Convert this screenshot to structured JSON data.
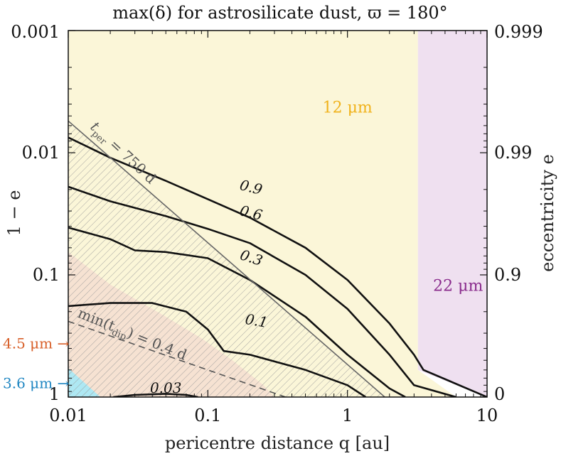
{
  "chart_data": {
    "type": "contour",
    "title": "max(δ) for astrosilicate dust, ϖ = 180°",
    "xlabel": "pericentre distance q [au]",
    "ylabel": "1 − e",
    "y2label": "eccentricity e",
    "xscale": "log",
    "yscale": "log",
    "xlim": [
      0.01,
      10
    ],
    "ylim": [
      1,
      0.001
    ],
    "xticks": [
      0.01,
      0.1,
      1,
      10
    ],
    "xtick_labels": [
      "0.01",
      "0.1",
      "1",
      "10"
    ],
    "yticks": [
      0.001,
      0.01,
      0.1,
      1
    ],
    "ytick_labels": [
      "0.001",
      "0.01",
      "0.1",
      "1"
    ],
    "y2tick_labels": [
      "0.999",
      "0.99",
      "0.9",
      "0"
    ],
    "regions": [
      {
        "name": "3.6 μm",
        "label": "3.6 μm",
        "color": "#aee8f3",
        "polygon": [
          [
            0.01,
            1
          ],
          [
            0.01,
            0.58
          ],
          [
            0.017,
            1
          ]
        ]
      },
      {
        "name": "4.5 μm",
        "label": "4.5 μm",
        "color": "#f6e2d2",
        "polygon": [
          [
            0.01,
            1
          ],
          [
            0.01,
            0.065
          ],
          [
            0.02,
            0.12
          ],
          [
            0.05,
            0.22
          ],
          [
            0.09,
            0.33
          ],
          [
            0.15,
            0.5
          ],
          [
            0.25,
            0.8
          ],
          [
            0.3,
            1
          ]
        ]
      },
      {
        "name": "12 μm",
        "label": "12 μm",
        "color": "#fbf6d8",
        "polygon": [
          [
            0.01,
            0.001
          ],
          [
            3.2,
            0.001
          ],
          [
            3.2,
            0.6
          ],
          [
            6,
            1
          ],
          [
            0.01,
            1
          ]
        ]
      },
      {
        "name": "22 μm",
        "label": "22 μm",
        "color": "#efe0f0",
        "polygon": [
          [
            3.2,
            0.001
          ],
          [
            10,
            0.001
          ],
          [
            10,
            1
          ],
          [
            3.2,
            0.6
          ]
        ]
      }
    ],
    "hatched_region": {
      "description": "t_dip constraint region",
      "bounded_by": "t_per = 750 d"
    },
    "contours": [
      {
        "level": "0.9",
        "label": "0.9",
        "points": [
          [
            0.01,
            0.0075
          ],
          [
            0.02,
            0.011
          ],
          [
            0.05,
            0.017
          ],
          [
            0.1,
            0.024
          ],
          [
            0.2,
            0.034
          ],
          [
            0.5,
            0.06
          ],
          [
            1,
            0.11
          ],
          [
            2,
            0.25
          ],
          [
            3,
            0.45
          ],
          [
            3.5,
            0.6
          ],
          [
            10,
            1
          ]
        ]
      },
      {
        "level": "0.6",
        "label": "0.6",
        "points": [
          [
            0.01,
            0.019
          ],
          [
            0.02,
            0.025
          ],
          [
            0.05,
            0.033
          ],
          [
            0.1,
            0.042
          ],
          [
            0.2,
            0.055
          ],
          [
            0.5,
            0.1
          ],
          [
            1,
            0.19
          ],
          [
            2,
            0.45
          ],
          [
            3,
            0.8
          ],
          [
            6,
            1
          ]
        ]
      },
      {
        "level": "0.3",
        "label": "0.3",
        "points": [
          [
            0.01,
            0.041
          ],
          [
            0.02,
            0.051
          ],
          [
            0.03,
            0.063
          ],
          [
            0.05,
            0.065
          ],
          [
            0.1,
            0.073
          ],
          [
            0.2,
            0.11
          ],
          [
            0.5,
            0.22
          ],
          [
            1,
            0.45
          ],
          [
            2,
            0.85
          ],
          [
            2.6,
            1
          ]
        ]
      },
      {
        "level": "0.1",
        "label": "0.1",
        "points": [
          [
            0.01,
            0.18
          ],
          [
            0.02,
            0.17
          ],
          [
            0.04,
            0.17
          ],
          [
            0.07,
            0.2
          ],
          [
            0.1,
            0.28
          ],
          [
            0.13,
            0.42
          ],
          [
            0.2,
            0.45
          ],
          [
            0.5,
            0.6
          ],
          [
            1,
            0.8
          ],
          [
            1.35,
            1
          ]
        ]
      },
      {
        "level": "0.03",
        "label": "0.03",
        "points": [
          [
            0.021,
            1
          ],
          [
            0.03,
            0.96
          ],
          [
            0.05,
            0.94
          ],
          [
            0.07,
            0.96
          ],
          [
            0.085,
            1
          ]
        ]
      }
    ],
    "reference_lines": [
      {
        "label": "t_per = 750 d",
        "style": "solid",
        "color": "#666666",
        "points": [
          [
            0.01,
            0.0055
          ],
          [
            1.85,
            1
          ]
        ]
      },
      {
        "label": "min(t_dip) = 0.4 d",
        "style": "dashed",
        "color": "#555555",
        "points": [
          [
            0.01,
            0.24
          ],
          [
            0.36,
            1
          ]
        ]
      }
    ],
    "annotations": [
      {
        "text": "4.5 μm →",
        "color": "#d8602a"
      },
      {
        "text": "3.6 μm →",
        "color": "#1f86c2"
      }
    ]
  },
  "labels": {
    "tper_base": "t",
    "tper_sub": "per",
    "tper_rest": " = 750 d",
    "tdip_pre": "min(t",
    "tdip_sub": "dip",
    "tdip_rest": ") = 0.4 d"
  }
}
